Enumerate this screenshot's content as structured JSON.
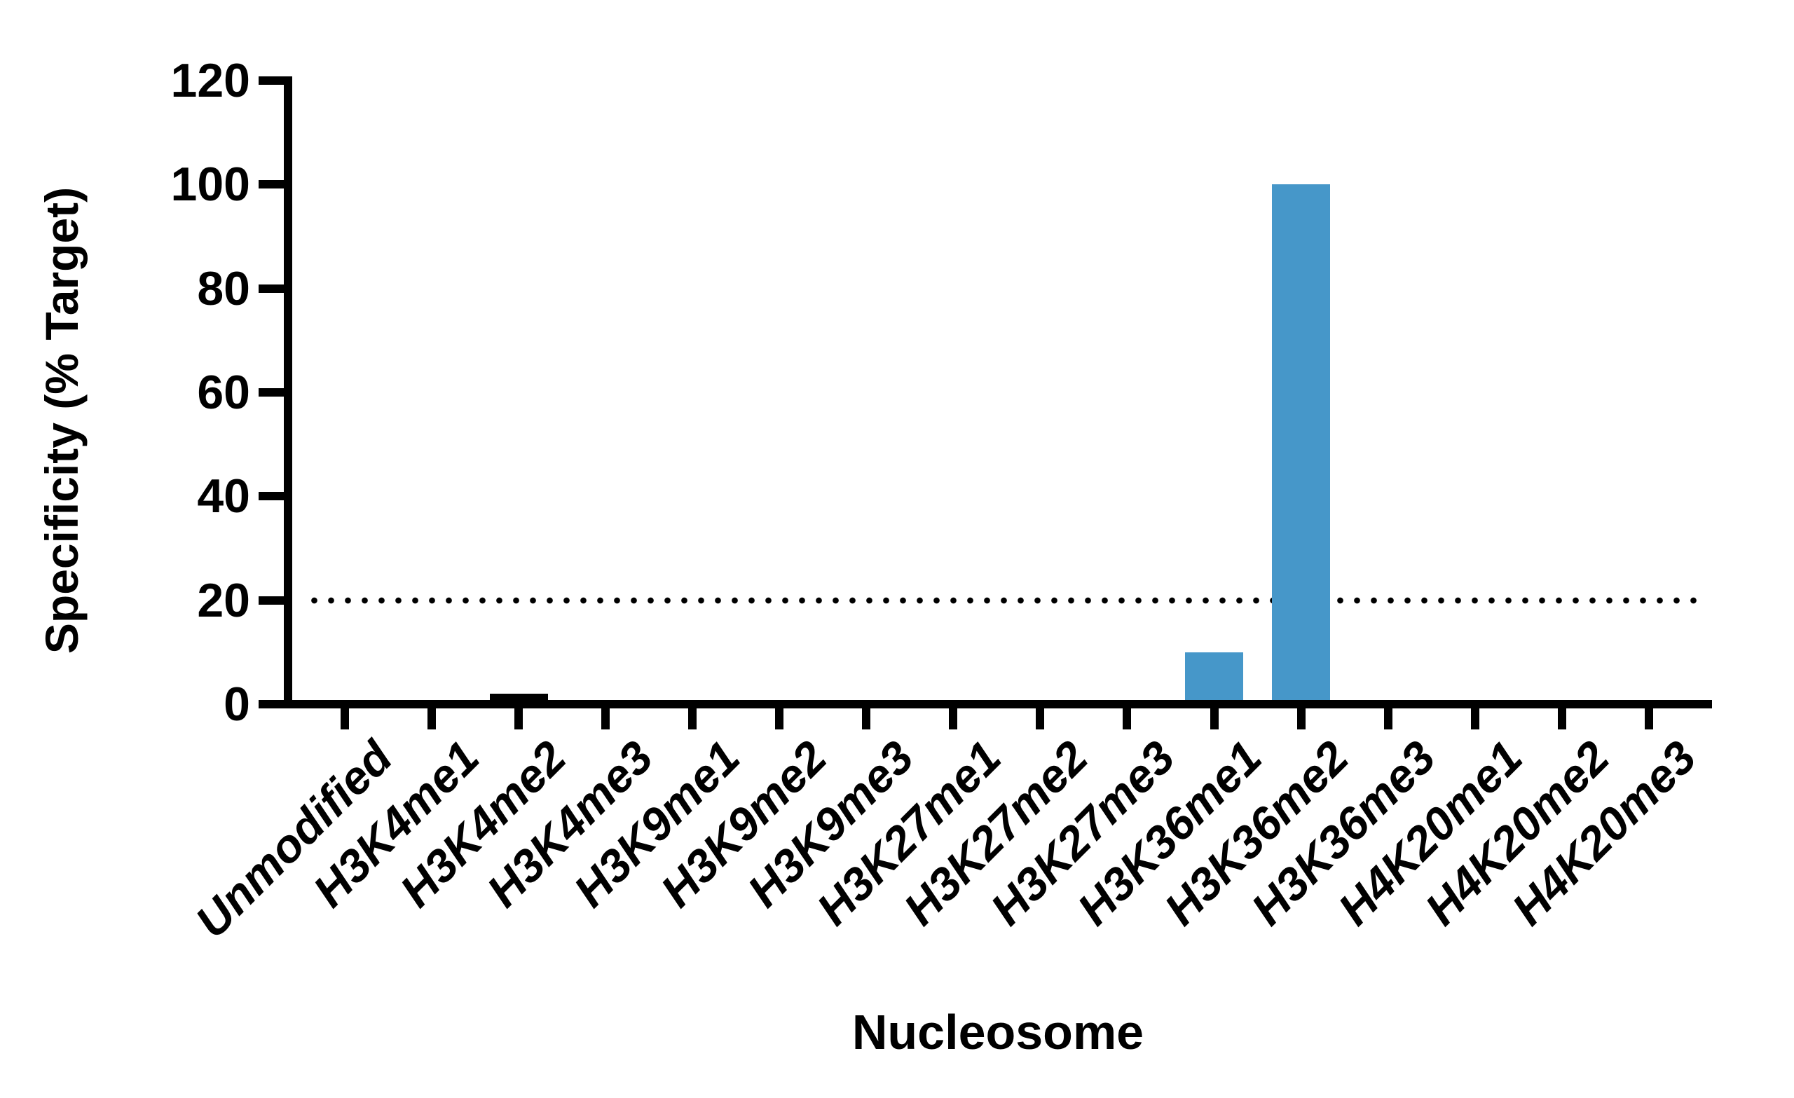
{
  "figure": {
    "background": "#ffffff",
    "axis_color": "#000000"
  },
  "chart_data": {
    "type": "bar",
    "title": "",
    "xlabel": "Nucleosome",
    "ylabel": "Specificity (% Target)",
    "categories": [
      "Unmodified",
      "H3K4me1",
      "H3K4me2",
      "H3K4me3",
      "H3K9me1",
      "H3K9me2",
      "H3K9me3",
      "H3K27me1",
      "H3K27me2",
      "H3K27me3",
      "H3K36me1",
      "H3K36me2",
      "H3K36me3",
      "H4K20me1",
      "H4K20me2",
      "H4K20me3"
    ],
    "values": [
      0,
      0,
      2,
      0,
      0,
      0,
      0,
      0,
      0,
      0,
      10,
      100,
      0,
      0,
      0,
      0
    ],
    "bar_colors": [
      "#000000",
      "#000000",
      "#000000",
      "#000000",
      "#000000",
      "#000000",
      "#000000",
      "#000000",
      "#000000",
      "#000000",
      "#4697C9",
      "#4697C9",
      "#4697C9",
      "#4697C9",
      "#4697C9",
      "#4697C9"
    ],
    "ylim": [
      0,
      120
    ],
    "yticks": [
      0,
      20,
      40,
      60,
      80,
      100,
      120
    ],
    "reference_line": {
      "value": 20,
      "style": "dotted",
      "color": "#000000"
    },
    "grid": false,
    "legend": false,
    "xtick_label_rotation_deg": 45
  }
}
